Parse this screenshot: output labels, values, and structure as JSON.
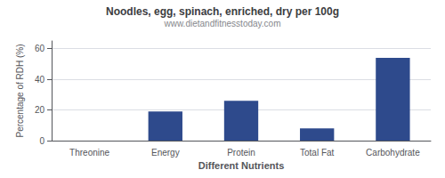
{
  "chart_data": {
    "type": "bar",
    "title": "Noodles, egg, spinach, enriched, dry per 100g",
    "subtitle": "www.dietandfitnesstoday.com",
    "xlabel": "Different Nutrients",
    "ylabel": "Percentage of RDH (%)",
    "categories": [
      "Threonine",
      "Energy",
      "Protein",
      "Total Fat",
      "Carbohydrate"
    ],
    "values": [
      0,
      19,
      26,
      8,
      54
    ],
    "color": "#2e4a8c",
    "ylim": [
      0,
      65
    ],
    "yticks": [
      0,
      20,
      40,
      60
    ],
    "grid": true
  }
}
